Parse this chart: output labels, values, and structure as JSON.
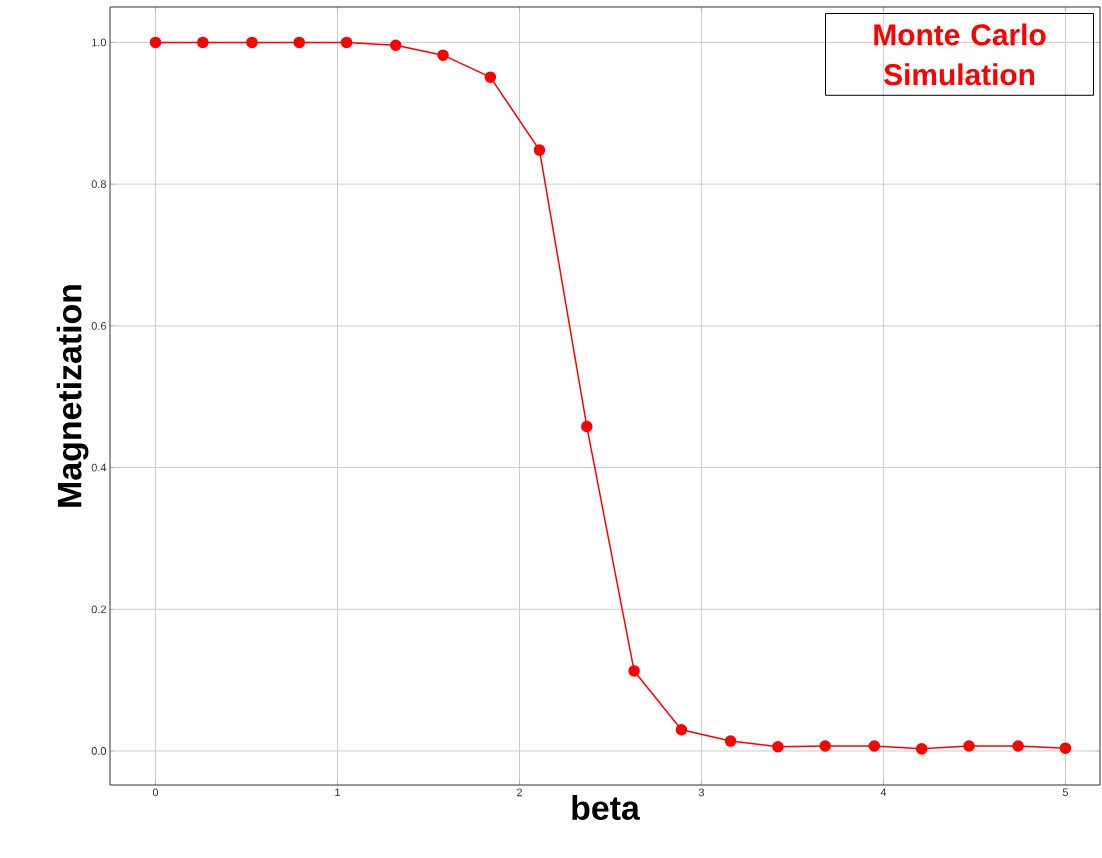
{
  "chart_data": {
    "type": "line",
    "xlabel": "beta",
    "ylabel": "Magnetization",
    "annotations": [
      "Monte Carlo Simulation"
    ],
    "x": [
      0,
      0.26,
      0.53,
      0.79,
      1.05,
      1.32,
      1.58,
      1.84,
      2.11,
      2.37,
      2.63,
      2.89,
      3.16,
      3.42,
      3.68,
      3.95,
      4.21,
      4.47,
      4.74,
      5.0
    ],
    "series": [
      {
        "color": "#ff0000",
        "values": [
          1.0,
          1.0,
          1.0,
          1.0,
          1.0,
          0.996,
          0.982,
          0.951,
          0.848,
          0.458,
          0.113,
          0.03,
          0.014,
          0.006,
          0.007,
          0.007,
          0.003,
          0.007,
          0.007,
          0.004
        ]
      }
    ],
    "xlim": [
      -0.25,
      5.19
    ],
    "ylim": [
      -0.048,
      1.05
    ],
    "xticks": [
      0,
      1,
      2,
      3,
      4,
      5
    ],
    "yticks": [
      {
        "value": 0,
        "label": "0.0"
      },
      {
        "value": 0.2,
        "label": "0.2"
      },
      {
        "value": 0.4,
        "label": "0.4"
      },
      {
        "value": 0.6,
        "label": "0.6"
      },
      {
        "value": 0.8,
        "label": "0.8"
      },
      {
        "value": 1.0,
        "label": "1.0"
      }
    ],
    "grid": true,
    "marker": "circle"
  }
}
